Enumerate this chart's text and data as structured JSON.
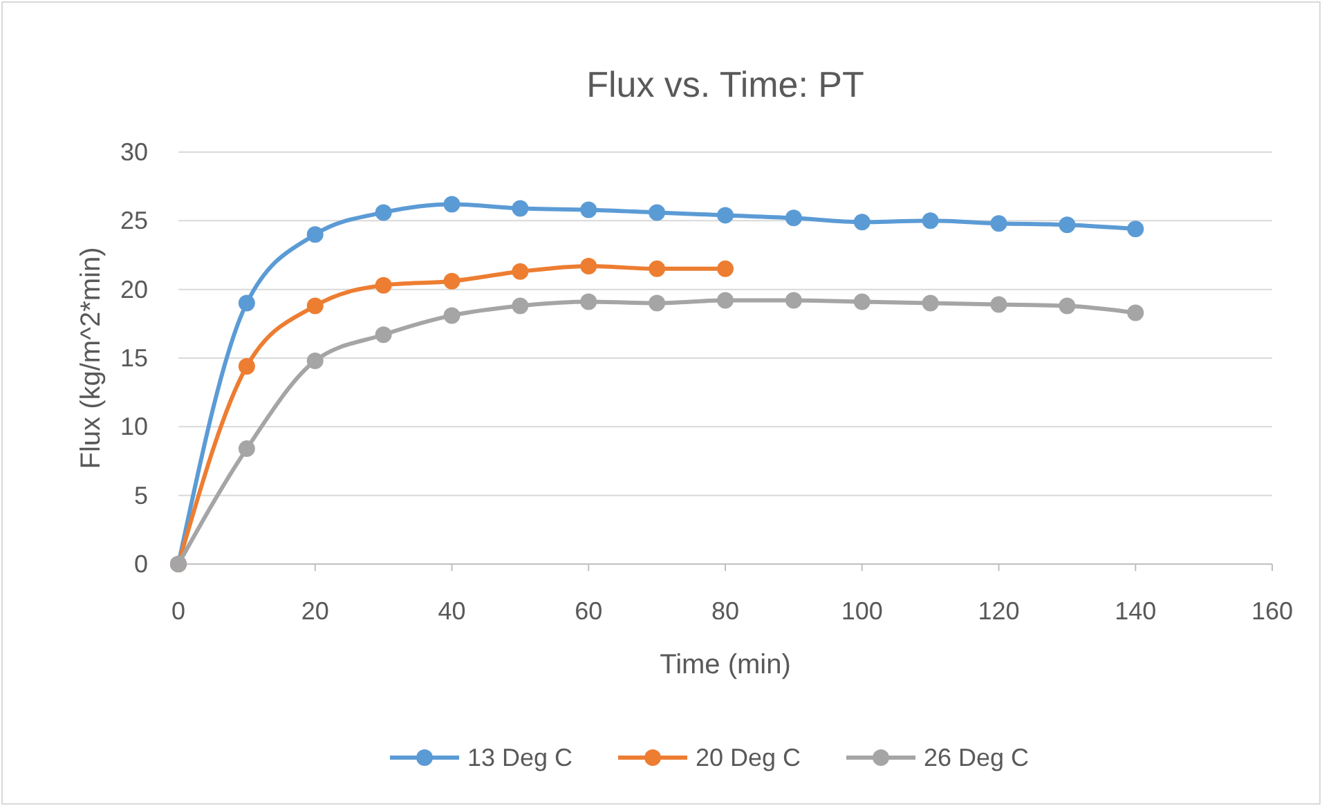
{
  "chart_data": {
    "type": "line",
    "title": "Flux vs. Time: PT",
    "xlabel": "Time (min)",
    "ylabel": "Flux (kg/m^2*min)",
    "xlim": [
      0,
      160
    ],
    "xticks": [
      0,
      20,
      40,
      60,
      80,
      100,
      120,
      140,
      160
    ],
    "ylim": [
      0,
      30
    ],
    "yticks": [
      0,
      5,
      10,
      15,
      20,
      25,
      30
    ],
    "grid": "y",
    "legend": "bottom",
    "marker": "circle",
    "line_style": "solid",
    "series": [
      {
        "name": "13 Deg C",
        "color": "#5b9bd5",
        "x": [
          0,
          10,
          20,
          30,
          40,
          50,
          60,
          70,
          80,
          90,
          100,
          110,
          120,
          130,
          140
        ],
        "values": [
          0,
          19,
          24,
          25.6,
          26.2,
          25.9,
          25.8,
          25.6,
          25.4,
          25.2,
          24.9,
          25,
          24.8,
          24.7,
          24.4
        ]
      },
      {
        "name": "20 Deg C",
        "color": "#ed7d31",
        "x": [
          0,
          10,
          20,
          30,
          40,
          50,
          60,
          70,
          80
        ],
        "values": [
          0,
          14.4,
          18.8,
          20.3,
          20.6,
          21.3,
          21.7,
          21.5,
          21.5
        ]
      },
      {
        "name": "26 Deg C",
        "color": "#a5a5a5",
        "x": [
          0,
          10,
          20,
          30,
          40,
          50,
          60,
          70,
          80,
          90,
          100,
          110,
          120,
          130,
          140
        ],
        "values": [
          0,
          8.4,
          14.8,
          16.7,
          18.1,
          18.8,
          19.1,
          19,
          19.2,
          19.2,
          19.1,
          19,
          18.9,
          18.8,
          18.3
        ]
      }
    ]
  }
}
